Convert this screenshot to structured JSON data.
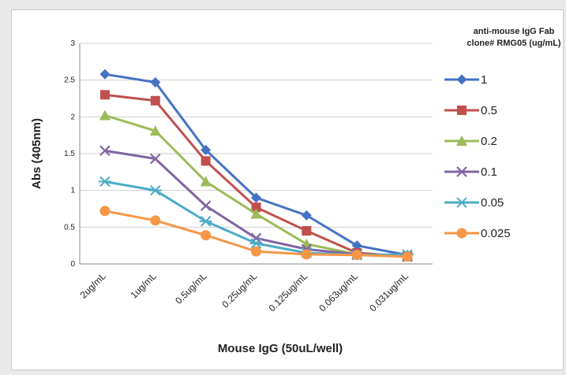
{
  "chart_data": {
    "type": "line",
    "title": "",
    "xlabel": "Mouse IgG (50uL/well)",
    "ylabel": "Abs (405nm)",
    "categories": [
      "2ug/mL",
      "1ug/mL",
      "0.5ug/mL",
      "0.25ug/mL",
      "0.125ug/mL",
      "0.063ug/mL",
      "0.031ug/mL"
    ],
    "ylim": [
      0,
      3
    ],
    "yticks": [
      "0",
      "0.5",
      "1",
      "1.5",
      "2",
      "2.5",
      "3"
    ],
    "grid": true,
    "legend": {
      "position": "right",
      "title_lines": [
        "anti-mouse IgG Fab",
        "clone# RMG05 (ug/mL)"
      ]
    },
    "series": [
      {
        "name": "1",
        "color": "#4472c4",
        "marker": "diamond",
        "values": [
          2.58,
          2.47,
          1.55,
          0.9,
          0.66,
          0.25,
          0.12
        ]
      },
      {
        "name": "0.5",
        "color": "#c0504d",
        "marker": "square",
        "values": [
          2.3,
          2.22,
          1.4,
          0.77,
          0.45,
          0.15,
          0.1
        ]
      },
      {
        "name": "0.2",
        "color": "#9bbb59",
        "marker": "triangle",
        "values": [
          2.02,
          1.81,
          1.12,
          0.68,
          0.27,
          0.13,
          0.1
        ]
      },
      {
        "name": "0.1",
        "color": "#8064a2",
        "marker": "x",
        "values": [
          1.54,
          1.43,
          0.79,
          0.35,
          0.2,
          0.13,
          0.1
        ]
      },
      {
        "name": "0.05",
        "color": "#4bacc6",
        "marker": "star",
        "values": [
          1.12,
          1.0,
          0.58,
          0.28,
          0.15,
          0.12,
          0.13
        ]
      },
      {
        "name": "0.025",
        "color": "#f79646",
        "marker": "circle",
        "values": [
          0.72,
          0.59,
          0.39,
          0.17,
          0.13,
          0.12,
          0.1
        ]
      }
    ]
  }
}
